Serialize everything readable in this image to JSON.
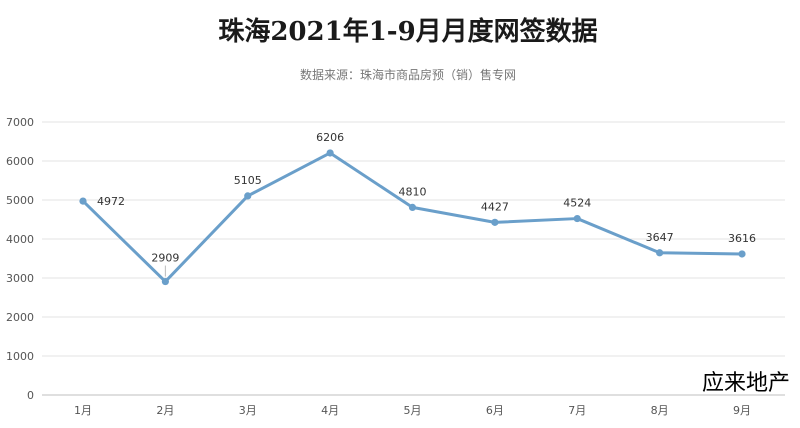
{
  "chart_data": {
    "type": "line",
    "title": "珠海2021年1-9月月度网签数据",
    "subtitle": "数据来源：珠海市商品房预（销）售专网",
    "xlabel": "",
    "ylabel": "",
    "categories": [
      "1月",
      "2月",
      "3月",
      "4月",
      "5月",
      "6月",
      "7月",
      "8月",
      "9月"
    ],
    "series": [
      {
        "values": [
          4972,
          2909,
          5105,
          6206,
          4810,
          4427,
          4524,
          3647,
          3616
        ],
        "color": "#6a9fca"
      }
    ],
    "ylim": [
      0,
      7000
    ],
    "yticks": [
      0,
      1000,
      2000,
      3000,
      4000,
      5000,
      6000,
      7000
    ],
    "grid": true,
    "legend": "none"
  },
  "watermark": "应来地产"
}
